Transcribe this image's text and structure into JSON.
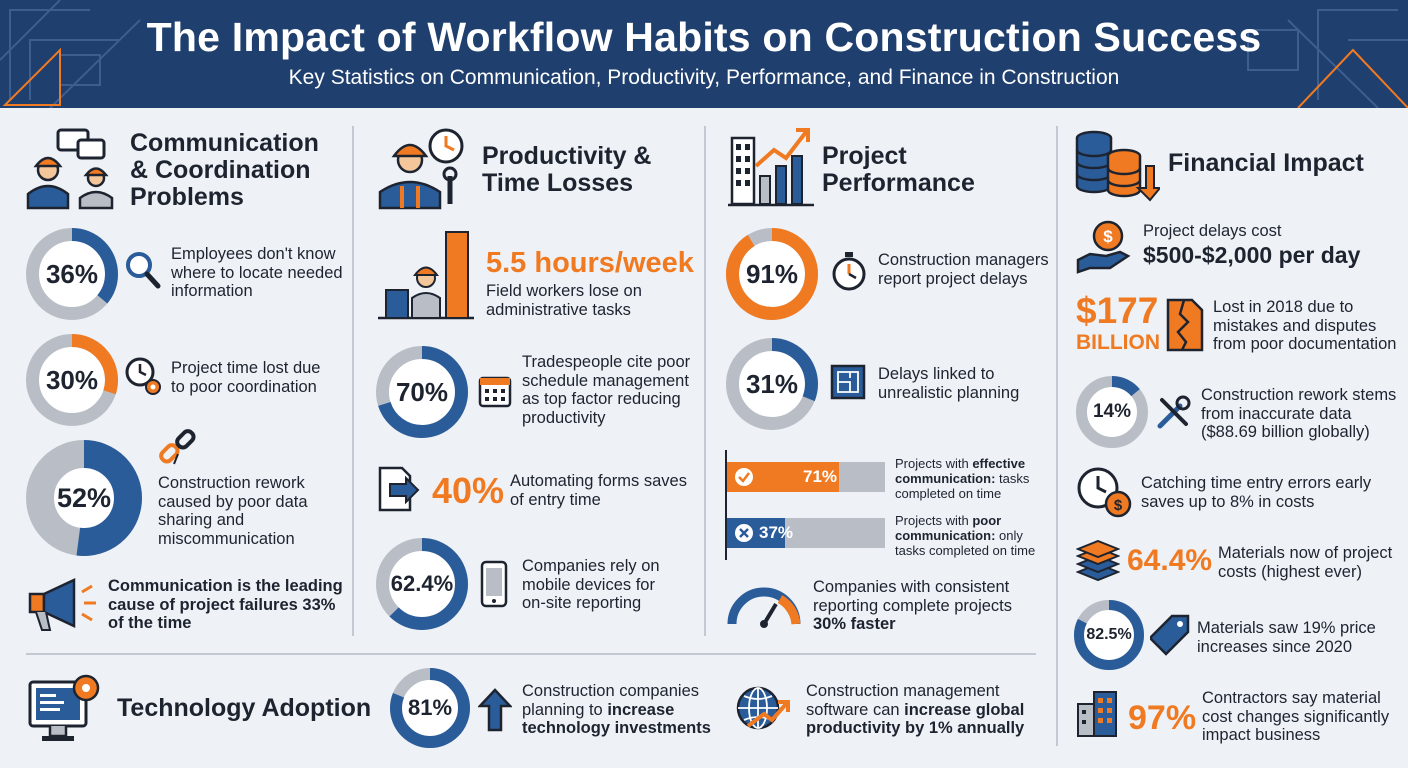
{
  "header": {
    "title": "The Impact of Workflow Habits on Construction Success",
    "subtitle": "Key Statistics on Communication, Productivity, Performance, and Finance in Construction"
  },
  "colors": {
    "navy": "#1f3f6e",
    "blue": "#2b5c9a",
    "orange": "#f07a22",
    "grey": "#b9bec6"
  },
  "communication": {
    "title_l1": "Communication",
    "title_l2": "& Coordination",
    "title_l3": "Problems",
    "stat1": {
      "value": 36,
      "label": "36%",
      "l1": "Employees don't know",
      "l2": "where to locate needed",
      "l3": "information",
      "icon": "magnifier-icon"
    },
    "stat2": {
      "value": 30,
      "label": "30%",
      "l1": "Project time lost due",
      "l2": "to poor coordination",
      "icon": "clock-gear-icon"
    },
    "stat3": {
      "value": 52,
      "label": "52%",
      "l1": "Construction rework",
      "l2": "caused by poor data",
      "l3": "sharing and",
      "l4": "miscommunication",
      "icon": "broken-link-icon"
    },
    "callout": {
      "l1": "Communication is the leading",
      "l2": "cause of project failures 33%",
      "l3": "of the time",
      "icon": "megaphone-icon"
    }
  },
  "productivity": {
    "title_l1": "Productivity &",
    "title_l2": "Time Losses",
    "hours": {
      "value": "5.5 hours/week",
      "l1": "Field workers lose on",
      "l2": "administrative tasks"
    },
    "stat70": {
      "value": 70,
      "label": "70%",
      "l1": "Tradespeople cite poor",
      "l2": "schedule management",
      "l3": "as top factor reducing",
      "l4": "productivity",
      "icon": "calendar-icon"
    },
    "stat40": {
      "label": "40%",
      "l1": "Automating forms saves",
      "l2": "of entry time",
      "icon": "form-arrow-icon"
    },
    "stat62": {
      "value": 62.4,
      "label": "62.4%",
      "l1": "Companies rely on",
      "l2": "mobile devices for",
      "l3": "on-site reporting",
      "icon": "phone-icon"
    }
  },
  "performance": {
    "title_l1": "Project",
    "title_l2": "Performance",
    "stat91": {
      "value": 91,
      "label": "91%",
      "l1": "Construction managers",
      "l2": "report project delays",
      "icon": "stopwatch-icon"
    },
    "stat31": {
      "value": 31,
      "label": "31%",
      "l1": "Delays linked to",
      "l2": "unrealistic planning",
      "icon": "blueprint-icon"
    },
    "bar_effective": {
      "value": 71,
      "label": "71%",
      "p1": "Projects with ",
      "p_bold": "effective",
      "p2": "communication:",
      "p3": " tasks",
      "p4": "completed on time"
    },
    "bar_poor": {
      "value": 37,
      "label": "37%",
      "p1": "Projects with ",
      "p_bold": "poor",
      "p2": "communication:",
      "p3": " only",
      "p4": "tasks completed on time"
    },
    "reporting": {
      "l1": "Companies with consistent",
      "l2": "reporting complete projects",
      "l3": "30% faster",
      "icon": "gauge-icon"
    }
  },
  "financial": {
    "title": "Financial Impact",
    "delays": {
      "l1": "Project delays cost",
      "l2": "$500-$2,000 per day",
      "icon": "money-hand-icon"
    },
    "billion": {
      "value": "$177",
      "unit": "BILLION",
      "l1": "Lost in 2018 due to",
      "l2": "mistakes and disputes",
      "l3": "from poor documentation",
      "icon": "torn-document-icon"
    },
    "stat14": {
      "value": 14,
      "label": "14%",
      "l1": "Construction rework stems",
      "l2": "from inaccurate data",
      "l3": "($88.69 billion globally)",
      "icon": "tools-icon"
    },
    "timeentry": {
      "l1": "Catching time entry errors early",
      "l2": "saves up to 8% in costs",
      "icon": "clock-dollar-icon"
    },
    "materials": {
      "label": "64.4%",
      "l1": "Materials now of project",
      "l2": "costs (highest ever)",
      "icon": "stacked-layers-icon"
    },
    "stat82": {
      "value": 82.5,
      "label": "82.5%",
      "l1": "Materials saw 19% price",
      "l2": "increases since 2020",
      "icon": "price-tag-icon"
    },
    "contractors": {
      "label": "97%",
      "l1": "Contractors say material",
      "l2": "cost changes significantly",
      "l3": "impact business",
      "icon": "building-icon"
    }
  },
  "technology": {
    "title": "Technology Adoption",
    "stat81": {
      "value": 81,
      "label": "81%",
      "l1": "Construction companies",
      "l2a": "planning to ",
      "l2b": "increase",
      "l3": "technology investments",
      "icon": "arrow-up-icon"
    },
    "global": {
      "l1": "Construction management",
      "l2a": "software can ",
      "l2b": "increase global",
      "l3": "productivity by 1% annually",
      "icon": "globe-growth-icon"
    }
  }
}
